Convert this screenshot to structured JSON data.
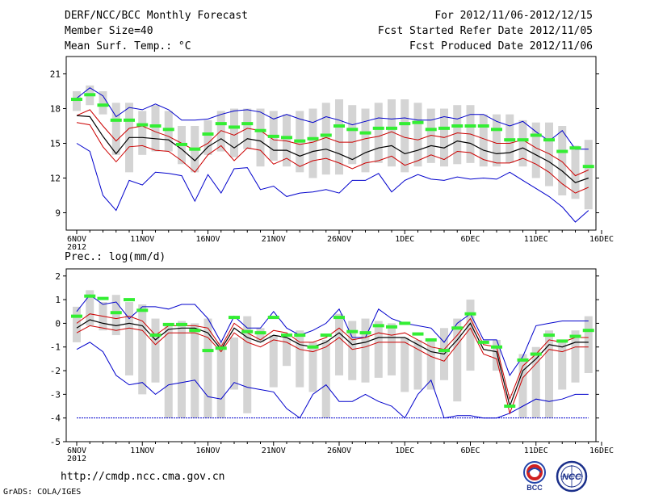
{
  "header": {
    "title": "DERF/NCC/BCC Monthly Forecast",
    "member_size": "Member Size=40",
    "variable": "Mean Surf. Temp.: °C",
    "fcst_period": "For 2012/11/06-2012/12/15",
    "fcst_started": "Fcst Started Refer Date 2012/11/05",
    "fcst_produced": "Fcst Produced Date 2012/11/06"
  },
  "footer": {
    "url": "http://cmdp.ncc.cma.gov.cn",
    "credit": "GrADS: COLA/IGES",
    "logo_bcc": "BCC",
    "logo_ncc": "NCC"
  },
  "colors": {
    "box": "#d4d4d4",
    "obs": "#33ee33",
    "mean": "#000000",
    "spread": "#cc0000",
    "extreme": "#0000cc",
    "frame": "#000000"
  },
  "chart_data": [
    {
      "type": "box-ensemble",
      "title": "Mean Surf. Temp.: °C",
      "xlabel": "",
      "ylabel": "°C",
      "x": [
        1,
        2,
        3,
        4,
        5,
        6,
        7,
        8,
        9,
        10,
        11,
        12,
        13,
        14,
        15,
        16,
        17,
        18,
        19,
        20,
        21,
        22,
        23,
        24,
        25,
        26,
        27,
        28,
        29,
        30,
        31,
        32,
        33,
        34,
        35,
        36,
        37,
        38,
        39,
        40
      ],
      "xticks": [
        {
          "x": 1,
          "label": "6NOV",
          "sub": "2012"
        },
        {
          "x": 6,
          "label": "11NOV"
        },
        {
          "x": 11,
          "label": "16NOV"
        },
        {
          "x": 16,
          "label": "21NOV"
        },
        {
          "x": 21,
          "label": "26NOV"
        },
        {
          "x": 26,
          "label": "1DEC"
        },
        {
          "x": 31,
          "label": "6DEC"
        },
        {
          "x": 36,
          "label": "11DEC"
        },
        {
          "x": 41,
          "label": "16DEC"
        }
      ],
      "yticks": [
        9,
        12,
        15,
        18,
        21
      ],
      "ylim": [
        7.5,
        22.5
      ],
      "box_low": [
        17.8,
        18.3,
        17.5,
        14.0,
        12.5,
        14.0,
        14.3,
        14.3,
        13.2,
        12.5,
        14.0,
        14.3,
        13.8,
        14.5,
        13.0,
        13.5,
        13.0,
        12.5,
        12.0,
        12.3,
        12.3,
        13.2,
        12.5,
        13.3,
        13.0,
        12.5,
        13.0,
        13.3,
        13.0,
        13.2,
        13.3,
        13.0,
        13.0,
        13.3,
        13.0,
        12.0,
        11.3,
        10.5,
        10.2,
        9.3
      ],
      "box_high": [
        19.5,
        20.0,
        19.5,
        18.5,
        18.5,
        17.8,
        18.3,
        17.8,
        16.5,
        16.5,
        17.0,
        17.8,
        18.0,
        18.0,
        18.0,
        17.8,
        17.5,
        17.8,
        18.0,
        18.5,
        18.8,
        18.3,
        18.0,
        18.5,
        18.8,
        18.8,
        18.5,
        18.0,
        18.0,
        18.3,
        18.3,
        17.5,
        17.5,
        17.5,
        17.0,
        16.8,
        16.8,
        16.5,
        14.8,
        15.3
      ],
      "obs": [
        18.8,
        19.2,
        18.3,
        17.0,
        17.0,
        16.6,
        16.5,
        16.2,
        14.9,
        14.5,
        15.8,
        16.7,
        16.4,
        16.7,
        16.1,
        15.6,
        15.5,
        15.2,
        15.4,
        15.7,
        16.5,
        16.2,
        15.9,
        16.3,
        16.3,
        16.7,
        16.8,
        16.2,
        16.3,
        16.5,
        16.5,
        16.5,
        16.2,
        15.3,
        15.3,
        15.7,
        15.3,
        14.3,
        14.6,
        13.0
      ],
      "max": [
        18.9,
        19.8,
        19.1,
        17.3,
        18.1,
        17.9,
        18.4,
        17.9,
        17.0,
        17.0,
        17.1,
        17.5,
        17.8,
        17.9,
        17.7,
        17.1,
        17.5,
        17.1,
        16.8,
        17.3,
        17.0,
        16.6,
        16.9,
        17.2,
        17.1,
        17.2,
        17.0,
        17.0,
        17.3,
        17.1,
        17.5,
        17.5,
        16.9,
        16.5,
        16.9,
        16.0,
        15.2,
        16.1,
        14.5,
        14.5
      ],
      "upper": [
        17.4,
        17.9,
        16.5,
        15.2,
        16.3,
        16.5,
        16.0,
        15.6,
        15.0,
        14.4,
        15.0,
        16.1,
        15.7,
        16.3,
        16.1,
        15.3,
        15.2,
        14.9,
        15.1,
        15.5,
        15.1,
        15.1,
        15.4,
        15.6,
        16.0,
        15.5,
        15.3,
        15.7,
        15.5,
        15.9,
        15.8,
        15.4,
        15.0,
        15.0,
        15.3,
        14.6,
        14.1,
        13.4,
        12.2,
        12.7
      ],
      "mean": [
        17.4,
        17.3,
        15.6,
        14.1,
        15.5,
        15.5,
        15.4,
        15.3,
        14.5,
        13.5,
        14.7,
        15.4,
        14.6,
        15.4,
        15.2,
        14.4,
        14.4,
        13.9,
        14.3,
        14.5,
        14.1,
        13.6,
        14.2,
        14.6,
        14.8,
        14.1,
        14.4,
        14.8,
        14.6,
        15.2,
        15.0,
        14.4,
        14.1,
        14.2,
        14.6,
        14.0,
        13.4,
        12.6,
        11.6,
        12.0
      ],
      "lower": [
        16.8,
        16.6,
        14.7,
        13.4,
        14.7,
        14.8,
        14.4,
        14.3,
        13.5,
        12.5,
        14.0,
        14.8,
        13.5,
        14.6,
        14.4,
        13.2,
        13.7,
        13.0,
        13.5,
        13.7,
        13.3,
        12.8,
        13.3,
        13.5,
        13.9,
        13.1,
        13.5,
        14.0,
        13.6,
        14.3,
        14.2,
        13.6,
        13.3,
        13.3,
        13.7,
        13.2,
        12.5,
        11.5,
        10.7,
        11.2
      ],
      "min": [
        15.0,
        14.3,
        10.5,
        9.2,
        11.8,
        11.4,
        12.5,
        12.4,
        12.2,
        10.0,
        12.3,
        10.7,
        12.8,
        12.9,
        11.0,
        11.3,
        10.4,
        10.7,
        10.8,
        11.0,
        10.7,
        11.8,
        11.8,
        12.4,
        10.8,
        11.8,
        12.3,
        11.9,
        11.8,
        12.1,
        11.9,
        12.0,
        11.9,
        12.5,
        11.8,
        11.1,
        10.4,
        9.5,
        8.2,
        9.2
      ]
    },
    {
      "type": "box-ensemble",
      "title": "Prec.: log(mm/d)",
      "xlabel": "",
      "ylabel": "log(mm/d)",
      "x": [
        1,
        2,
        3,
        4,
        5,
        6,
        7,
        8,
        9,
        10,
        11,
        12,
        13,
        14,
        15,
        16,
        17,
        18,
        19,
        20,
        21,
        22,
        23,
        24,
        25,
        26,
        27,
        28,
        29,
        30,
        31,
        32,
        33,
        34,
        35,
        36,
        37,
        38,
        39,
        40
      ],
      "xticks": [
        {
          "x": 1,
          "label": "6NOV",
          "sub": "2012"
        },
        {
          "x": 6,
          "label": "11NOV"
        },
        {
          "x": 11,
          "label": "16NOV"
        },
        {
          "x": 16,
          "label": "21NOV"
        },
        {
          "x": 21,
          "label": "26NOV"
        },
        {
          "x": 26,
          "label": "1DEC"
        },
        {
          "x": 31,
          "label": "6DEC"
        },
        {
          "x": 36,
          "label": "11DEC"
        },
        {
          "x": 41,
          "label": "16DEC"
        }
      ],
      "yticks": [
        -5,
        -4,
        -3,
        -2,
        -1,
        0,
        1,
        2
      ],
      "ylim": [
        -5,
        2.3
      ],
      "box_low": [
        -0.8,
        -0.1,
        -0.3,
        -0.5,
        -2.2,
        -3.0,
        -2.5,
        -4.0,
        -4.0,
        -4.0,
        -4.0,
        -4.0,
        -2.8,
        -3.8,
        -0.8,
        -2.7,
        -1.8,
        -2.7,
        -2.9,
        -4.0,
        -2.2,
        -2.4,
        -2.5,
        -2.3,
        -2.2,
        -2.9,
        -2.8,
        -2.8,
        -2.4,
        -3.3,
        -2.0,
        -0.7,
        -2.0,
        -2.4,
        -4.0,
        -4.0,
        -4.0,
        -2.8,
        -2.5,
        -2.1
      ],
      "box_high": [
        0.7,
        1.4,
        0.9,
        1.2,
        0.9,
        0.8,
        0.2,
        0.0,
        0.1,
        0.0,
        0.2,
        -0.8,
        -0.6,
        0.3,
        -0.2,
        -0.5,
        -0.6,
        -0.3,
        -0.8,
        -0.7,
        0.4,
        0.1,
        0.2,
        0.1,
        0.0,
        -0.6,
        -0.7,
        -0.7,
        -0.2,
        0.2,
        1.0,
        -0.8,
        -0.7,
        -3.0,
        -1.3,
        -1.0,
        -0.3,
        -0.8,
        -0.3,
        0.3
      ],
      "obs": [
        0.3,
        1.15,
        1.05,
        0.45,
        1.0,
        0.55,
        -0.5,
        -0.05,
        -0.05,
        -0.3,
        -1.15,
        -1.05,
        0.25,
        -0.35,
        -0.4,
        0.25,
        -0.5,
        -0.5,
        -1.0,
        -0.5,
        0.25,
        -0.35,
        -0.4,
        -0.1,
        -0.15,
        0.0,
        -0.45,
        -0.7,
        -1.15,
        -0.2,
        0.4,
        -0.8,
        -1.0,
        -3.5,
        -1.55,
        -1.3,
        -0.5,
        -0.75,
        -0.55,
        -0.3
      ],
      "max": [
        0.5,
        1.2,
        0.8,
        0.9,
        0.2,
        0.7,
        0.7,
        0.6,
        0.8,
        0.8,
        0.2,
        -0.8,
        0.3,
        -0.2,
        -0.2,
        0.5,
        -0.2,
        -0.5,
        -0.3,
        0.0,
        0.6,
        -0.6,
        -0.6,
        0.6,
        0.2,
        0.0,
        -0.1,
        -0.2,
        -0.8,
        0.0,
        0.4,
        -0.7,
        -0.7,
        -2.2,
        -1.4,
        -0.1,
        0.0,
        0.1,
        0.1,
        0.1
      ],
      "upper": [
        0.0,
        0.4,
        0.3,
        0.2,
        0.3,
        0.1,
        -0.5,
        -0.1,
        -0.1,
        -0.1,
        -0.2,
        -1.0,
        0.0,
        -0.4,
        -0.7,
        -0.3,
        -0.4,
        -0.8,
        -0.8,
        -0.6,
        -0.2,
        -0.7,
        -0.6,
        -0.4,
        -0.5,
        -0.4,
        -0.7,
        -1.0,
        -1.1,
        -0.5,
        0.2,
        -0.9,
        -1.0,
        -3.2,
        -1.8,
        -1.3,
        -0.7,
        -0.8,
        -0.6,
        -0.6
      ],
      "mean": [
        -0.2,
        0.15,
        0.0,
        -0.1,
        0.0,
        -0.1,
        -0.7,
        -0.25,
        -0.2,
        -0.2,
        -0.4,
        -1.1,
        -0.2,
        -0.6,
        -0.8,
        -0.5,
        -0.6,
        -0.9,
        -1.0,
        -0.8,
        -0.4,
        -0.9,
        -0.8,
        -0.6,
        -0.6,
        -0.6,
        -0.9,
        -1.2,
        -1.3,
        -0.7,
        0.0,
        -1.1,
        -1.2,
        -3.5,
        -2.0,
        -1.5,
        -0.9,
        -1.0,
        -0.8,
        -0.8
      ],
      "lower": [
        -0.4,
        -0.1,
        -0.2,
        -0.3,
        -0.2,
        -0.3,
        -0.9,
        -0.4,
        -0.4,
        -0.4,
        -0.6,
        -1.2,
        -0.4,
        -0.8,
        -1.0,
        -0.7,
        -0.8,
        -1.1,
        -1.2,
        -1.0,
        -0.6,
        -1.1,
        -1.0,
        -0.8,
        -0.8,
        -0.8,
        -1.1,
        -1.4,
        -1.6,
        -0.9,
        -0.2,
        -1.3,
        -1.5,
        -3.8,
        -2.3,
        -1.7,
        -1.1,
        -1.2,
        -1.0,
        -1.0
      ],
      "min": [
        -1.1,
        -0.8,
        -1.2,
        -2.2,
        -2.6,
        -2.5,
        -3.0,
        -2.6,
        -2.5,
        -2.4,
        -3.1,
        -3.2,
        -2.5,
        -2.7,
        -2.8,
        -2.9,
        -3.6,
        -4.0,
        -3.0,
        -2.6,
        -3.3,
        -3.3,
        -3.0,
        -3.3,
        -3.5,
        -4.0,
        -3.0,
        -2.4,
        -4.0,
        -3.9,
        -3.9,
        -4.0,
        -4.0,
        -3.8,
        -3.5,
        -3.2,
        -3.3,
        -3.2,
        -3.0,
        -3.0
      ],
      "floor": -4.0
    }
  ]
}
